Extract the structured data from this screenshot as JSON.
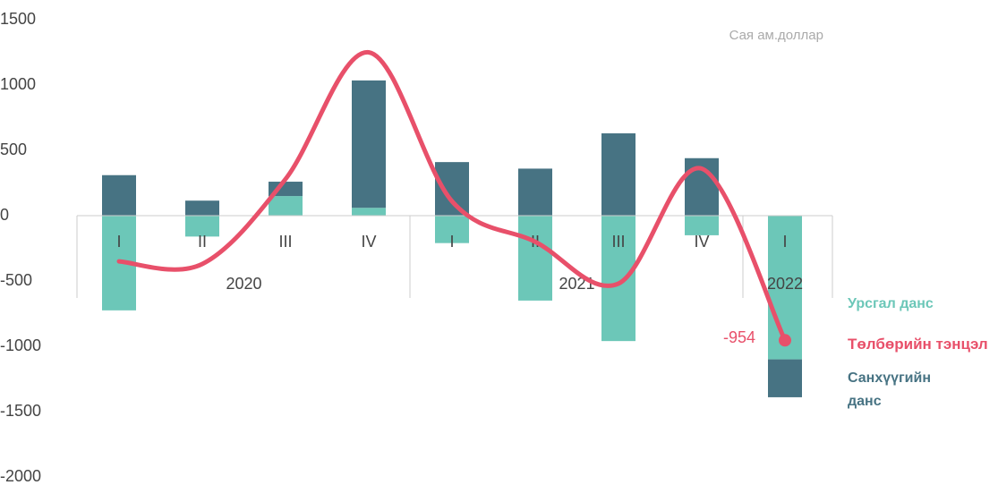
{
  "chart_data": {
    "type": "bar_line",
    "annotation": "Сая ам.доллар",
    "categories": [
      "I",
      "II",
      "III",
      "IV",
      "I",
      "II",
      "III",
      "IV",
      "I"
    ],
    "category_groups": [
      "2020",
      "2020",
      "2020",
      "2020",
      "2021",
      "2021",
      "2021",
      "2021",
      "2022"
    ],
    "series": [
      {
        "name": "Урсгал данс",
        "type": "bar",
        "color": "#6cc7b8",
        "values": [
          -725,
          -160,
          150,
          60,
          -210,
          -650,
          -960,
          -150,
          -1100
        ]
      },
      {
        "name": "Санхүүгийн данс",
        "type": "bar",
        "color": "#477383",
        "values": [
          310,
          115,
          110,
          975,
          410,
          360,
          630,
          440,
          -290
        ]
      },
      {
        "name": "Төлбөрийн тэнцэл",
        "type": "line",
        "color": "#e8506a",
        "values": [
          -350,
          -370,
          280,
          1250,
          110,
          -200,
          -520,
          360,
          -954
        ]
      }
    ],
    "ylim": [
      -2000,
      1500
    ],
    "yticks": [
      -2000,
      -1500,
      -1000,
      -500,
      0,
      500,
      1000,
      1500
    ],
    "grid": false
  }
}
